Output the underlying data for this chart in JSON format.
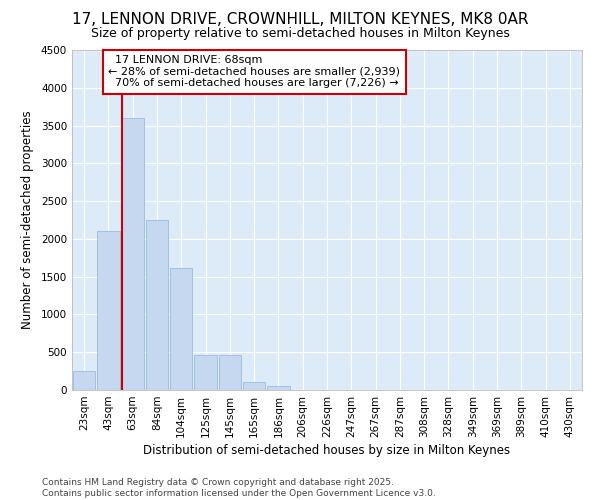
{
  "title": "17, LENNON DRIVE, CROWNHILL, MILTON KEYNES, MK8 0AR",
  "subtitle": "Size of property relative to semi-detached houses in Milton Keynes",
  "xlabel": "Distribution of semi-detached houses by size in Milton Keynes",
  "ylabel": "Number of semi-detached properties",
  "bar_color": "#c5d8ef",
  "bar_edge_color": "#9bbcde",
  "bg_color": "#ddeaf8",
  "grid_color": "#ffffff",
  "fig_bg_color": "#ffffff",
  "categories": [
    "23sqm",
    "43sqm",
    "63sqm",
    "84sqm",
    "104sqm",
    "125sqm",
    "145sqm",
    "165sqm",
    "186sqm",
    "206sqm",
    "226sqm",
    "247sqm",
    "267sqm",
    "287sqm",
    "308sqm",
    "328sqm",
    "349sqm",
    "369sqm",
    "389sqm",
    "410sqm",
    "430sqm"
  ],
  "values": [
    250,
    2100,
    3600,
    2250,
    1620,
    460,
    460,
    100,
    55,
    5,
    2,
    1,
    0,
    0,
    0,
    0,
    0,
    0,
    0,
    0,
    0
  ],
  "property_label": "17 LENNON DRIVE: 68sqm",
  "pct_smaller": 28,
  "pct_larger": 70,
  "num_smaller": 2939,
  "num_larger": 7226,
  "red_line_x": 2.0,
  "annotation_box_facecolor": "#ffffff",
  "annotation_box_edgecolor": "#cc0000",
  "annotation_text_color": "#000000",
  "ylim": [
    0,
    4500
  ],
  "yticks": [
    0,
    500,
    1000,
    1500,
    2000,
    2500,
    3000,
    3500,
    4000,
    4500
  ],
  "title_fontsize": 11,
  "subtitle_fontsize": 9,
  "axis_label_fontsize": 8.5,
  "tick_fontsize": 7.5,
  "annotation_fontsize": 8,
  "footer_fontsize": 6.5,
  "footer_text": "Contains HM Land Registry data © Crown copyright and database right 2025.\nContains public sector information licensed under the Open Government Licence v3.0."
}
